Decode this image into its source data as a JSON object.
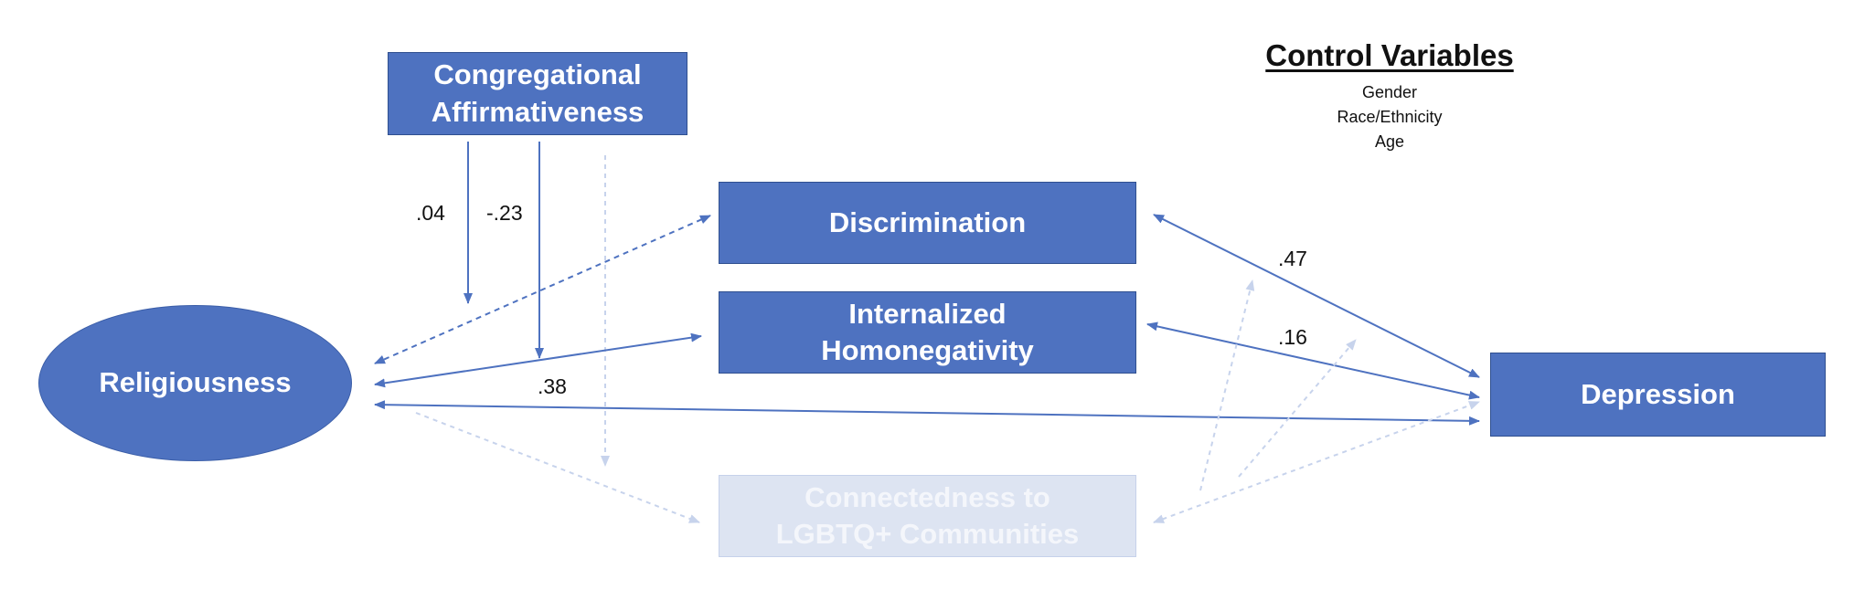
{
  "nodes": {
    "congregational": {
      "line1": "Congregational",
      "line2": "Affirmativeness"
    },
    "religiousness": {
      "label": "Religiousness"
    },
    "discrimination": {
      "label": "Discrimination"
    },
    "homonegativity": {
      "line1": "Internalized",
      "line2": "Homonegativity"
    },
    "connectedness": {
      "line1": "Connectedness to",
      "line2": "LGBTQ+ Communities"
    },
    "depression": {
      "label": "Depression"
    }
  },
  "coefficients": {
    "moderation_1": ".04",
    "moderation_2": "-.23",
    "discrimination_depression": ".47",
    "homonegativity_depression": ".16",
    "religiousness_depression": ".38"
  },
  "control_variables": {
    "title": "Control Variables",
    "items": [
      "Gender",
      "Race/Ethnicity",
      "Age"
    ]
  },
  "colors": {
    "node_fill": "#4e72c0",
    "node_border": "#2f4f8f",
    "faded_fill": "#dde4f2",
    "arrow": "#4e72c0",
    "faded_arrow": "#c7d3ec"
  }
}
